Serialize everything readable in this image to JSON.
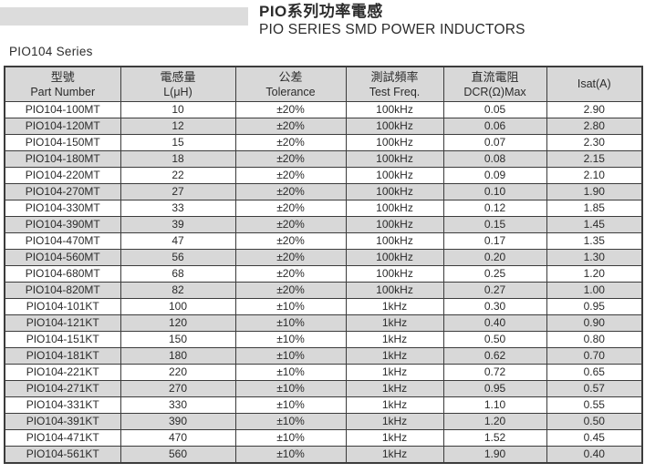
{
  "header": {
    "title_zh": "PIO系列功率電感",
    "title_en": "PIO SERIES SMD POWER INDUCTORS"
  },
  "series_label": "PIO104 Series",
  "colors": {
    "stripe": "#d8d8d8",
    "header_bg": "#d8d8d8",
    "border": "#3c3c3c",
    "banner": "#dcdcdc"
  },
  "table": {
    "columns": [
      {
        "zh": "型號",
        "en": "Part Number"
      },
      {
        "zh": "電感量",
        "en": "L(μH)"
      },
      {
        "zh": "公差",
        "en": "Tolerance"
      },
      {
        "zh": "測試頻率",
        "en": "Test Freq."
      },
      {
        "zh": "直流電阻",
        "en": "DCR(Ω)Max"
      },
      {
        "zh": "",
        "en": "Isat(A)"
      }
    ],
    "rows": [
      [
        "PIO104-100MT",
        "10",
        "±20%",
        "100kHz",
        "0.05",
        "2.90"
      ],
      [
        "PIO104-120MT",
        "12",
        "±20%",
        "100kHz",
        "0.06",
        "2.80"
      ],
      [
        "PIO104-150MT",
        "15",
        "±20%",
        "100kHz",
        "0.07",
        "2.30"
      ],
      [
        "PIO104-180MT",
        "18",
        "±20%",
        "100kHz",
        "0.08",
        "2.15"
      ],
      [
        "PIO104-220MT",
        "22",
        "±20%",
        "100kHz",
        "0.09",
        "2.10"
      ],
      [
        "PIO104-270MT",
        "27",
        "±20%",
        "100kHz",
        "0.10",
        "1.90"
      ],
      [
        "PIO104-330MT",
        "33",
        "±20%",
        "100kHz",
        "0.12",
        "1.85"
      ],
      [
        "PIO104-390MT",
        "39",
        "±20%",
        "100kHz",
        "0.15",
        "1.45"
      ],
      [
        "PIO104-470MT",
        "47",
        "±20%",
        "100kHz",
        "0.17",
        "1.35"
      ],
      [
        "PIO104-560MT",
        "56",
        "±20%",
        "100kHz",
        "0.20",
        "1.30"
      ],
      [
        "PIO104-680MT",
        "68",
        "±20%",
        "100kHz",
        "0.25",
        "1.20"
      ],
      [
        "PIO104-820MT",
        "82",
        "±20%",
        "100kHz",
        "0.27",
        "1.00"
      ],
      [
        "PIO104-101KT",
        "100",
        "±10%",
        "1kHz",
        "0.30",
        "0.95"
      ],
      [
        "PIO104-121KT",
        "120",
        "±10%",
        "1kHz",
        "0.40",
        "0.90"
      ],
      [
        "PIO104-151KT",
        "150",
        "±10%",
        "1kHz",
        "0.50",
        "0.80"
      ],
      [
        "PIO104-181KT",
        "180",
        "±10%",
        "1kHz",
        "0.62",
        "0.70"
      ],
      [
        "PIO104-221KT",
        "220",
        "±10%",
        "1kHz",
        "0.72",
        "0.65"
      ],
      [
        "PIO104-271KT",
        "270",
        "±10%",
        "1kHz",
        "0.95",
        "0.57"
      ],
      [
        "PIO104-331KT",
        "330",
        "±10%",
        "1kHz",
        "1.10",
        "0.55"
      ],
      [
        "PIO104-391KT",
        "390",
        "±10%",
        "1kHz",
        "1.20",
        "0.50"
      ],
      [
        "PIO104-471KT",
        "470",
        "±10%",
        "1kHz",
        "1.52",
        "0.45"
      ],
      [
        "PIO104-561KT",
        "560",
        "±10%",
        "1kHz",
        "1.90",
        "0.40"
      ]
    ]
  }
}
